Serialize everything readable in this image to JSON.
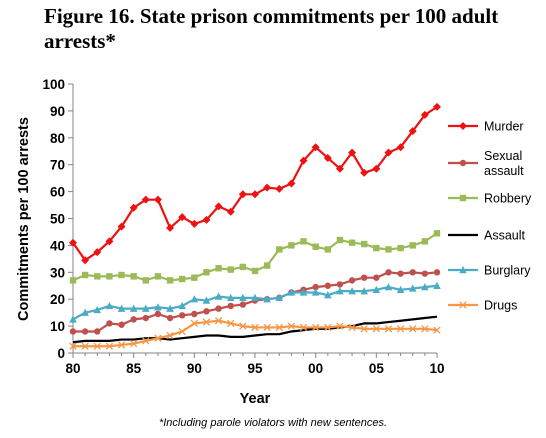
{
  "title": "Figure 16. State prison commitments per 100 adult arrests*",
  "footnote": "*Including parole violators with new sentences.",
  "chart_data": {
    "type": "line",
    "title": "Figure 16. State prison commitments per 100 adult arrests*",
    "xlabel": "Year",
    "ylabel": "Commitments per 100 arrests",
    "xlim": [
      1980,
      2010
    ],
    "ylim": [
      0,
      100
    ],
    "x_ticks": [
      1980,
      1985,
      1990,
      1995,
      2000,
      2005,
      2010
    ],
    "x_tick_labels": [
      "80",
      "85",
      "90",
      "95",
      "00",
      "05",
      "10"
    ],
    "y_ticks": [
      0,
      10,
      20,
      30,
      40,
      50,
      60,
      70,
      80,
      90,
      100
    ],
    "grid": false,
    "legend_position": "right",
    "x": [
      1980,
      1981,
      1982,
      1983,
      1984,
      1985,
      1986,
      1987,
      1988,
      1989,
      1990,
      1991,
      1992,
      1993,
      1994,
      1995,
      1996,
      1997,
      1998,
      1999,
      2000,
      2001,
      2002,
      2003,
      2004,
      2005,
      2006,
      2007,
      2008,
      2009,
      2010
    ],
    "series": [
      {
        "name": "Murder",
        "color": "#ee1111",
        "marker": "diamond",
        "values": [
          41,
          34.5,
          37.5,
          41.5,
          47,
          54,
          57,
          57,
          46.5,
          50.5,
          48,
          49.5,
          54.5,
          52.5,
          59,
          59,
          61.5,
          61,
          63,
          71.5,
          76.5,
          72.5,
          68.5,
          74.5,
          67,
          68.5,
          74.5,
          76.5,
          82.5,
          88.5,
          91.5
        ]
      },
      {
        "name": "Sexual assault",
        "color": "#c0504d",
        "marker": "circle",
        "values": [
          8,
          8,
          8,
          11,
          10.5,
          12.5,
          13,
          14.5,
          13,
          14,
          14.5,
          15.5,
          16.5,
          17.5,
          18,
          19.5,
          20,
          20.5,
          22.5,
          23.5,
          24.5,
          25,
          25.5,
          27,
          28,
          28,
          30,
          29.5,
          30,
          29.5,
          30
        ]
      },
      {
        "name": "Robbery",
        "color": "#9bbb59",
        "marker": "square",
        "values": [
          27,
          29,
          28.5,
          28.5,
          29,
          28.5,
          27,
          28.5,
          27,
          27.5,
          28,
          30,
          31.5,
          31,
          32,
          30.5,
          32.5,
          38.5,
          40,
          41.5,
          39.5,
          38.5,
          42,
          41,
          40.5,
          39,
          38.5,
          39,
          40,
          41.5,
          44.5
        ]
      },
      {
        "name": "Assault",
        "color": "#000000",
        "marker": "none",
        "values": [
          4,
          4.5,
          4.5,
          4.5,
          5,
          5,
          5.5,
          5.5,
          5,
          5.5,
          6,
          6.5,
          6.5,
          6,
          6,
          6.5,
          7,
          7,
          8,
          8.5,
          9,
          9,
          9.5,
          10,
          11,
          11,
          11.5,
          12,
          12.5,
          13,
          13.5
        ]
      },
      {
        "name": "Burglary",
        "color": "#4bacc6",
        "marker": "triangle",
        "values": [
          12.5,
          15,
          16,
          17.5,
          16.5,
          16.5,
          16.5,
          17,
          16.5,
          17.5,
          20,
          19.5,
          21,
          20.5,
          20.5,
          20.5,
          20,
          20.5,
          22.5,
          22.5,
          22.5,
          21.5,
          23,
          23,
          23,
          23.5,
          24.5,
          23.5,
          24,
          24.5,
          25
        ]
      },
      {
        "name": "Drugs",
        "color": "#f79646",
        "marker": "x",
        "values": [
          2.5,
          2.5,
          2.5,
          2.5,
          3,
          3.5,
          4.5,
          5.5,
          6.5,
          8,
          11,
          11.5,
          12,
          11,
          10,
          9.5,
          9.5,
          9.5,
          10,
          9.5,
          9.5,
          9.5,
          10,
          9.5,
          9,
          9,
          9,
          9,
          9,
          9,
          8.5
        ]
      }
    ]
  }
}
